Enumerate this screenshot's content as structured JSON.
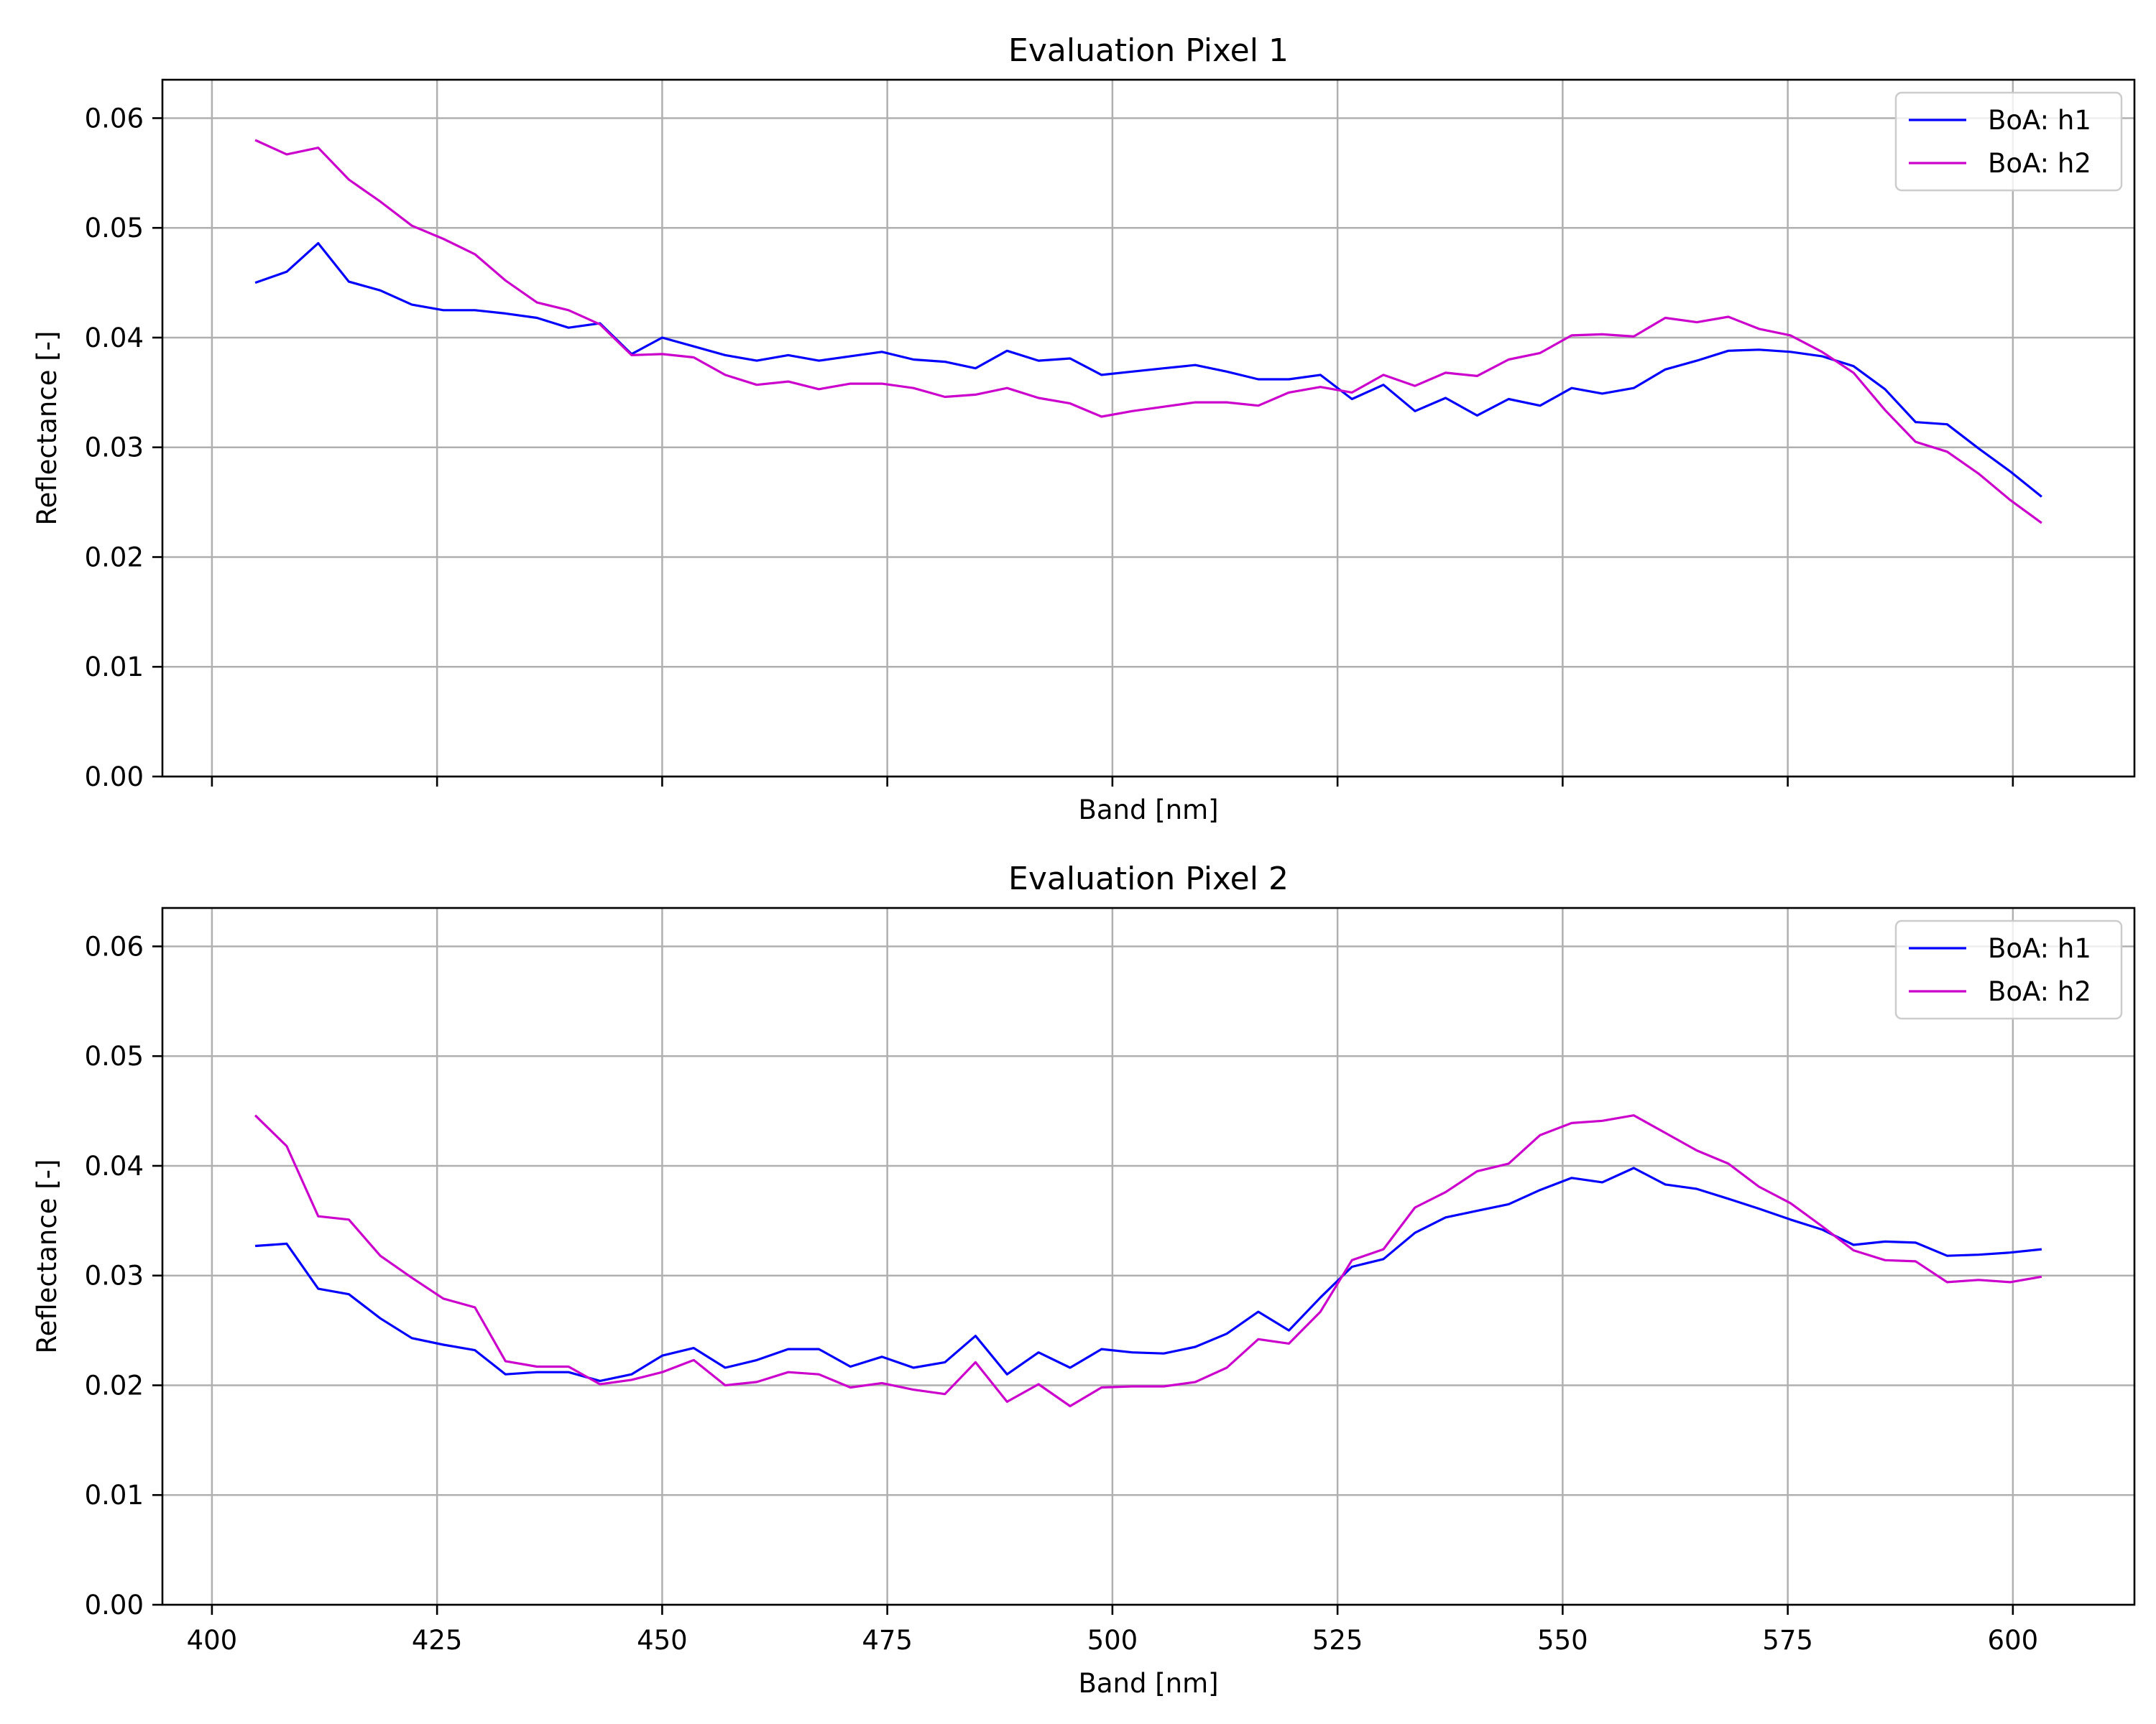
{
  "chart_data": [
    {
      "type": "line",
      "title": "Evaluation Pixel 1",
      "xlabel": "Band [nm]",
      "ylabel": "Reflectance [-]",
      "xlim": [
        394.5,
        613.5
      ],
      "ylim": [
        0,
        0.0635
      ],
      "xticks": [
        400,
        425,
        450,
        475,
        500,
        525,
        550,
        575,
        600
      ],
      "xtick_labels_visible": false,
      "yticks": [
        0.0,
        0.01,
        0.02,
        0.03,
        0.04,
        0.05,
        0.06
      ],
      "ytick_labels": [
        "0.00",
        "0.01",
        "0.02",
        "0.03",
        "0.04",
        "0.05",
        "0.06"
      ],
      "grid": true,
      "legend": "top-right",
      "x": [
        404.8,
        408.3,
        411.8,
        415.2,
        418.7,
        422.2,
        425.7,
        429.2,
        432.6,
        436.1,
        439.6,
        443.1,
        446.6,
        450.0,
        453.5,
        457.0,
        460.5,
        464.0,
        467.4,
        470.9,
        474.4,
        477.9,
        481.4,
        484.8,
        488.3,
        491.8,
        495.3,
        498.8,
        502.2,
        505.7,
        509.2,
        512.7,
        516.2,
        519.6,
        523.1,
        526.6,
        530.1,
        533.6,
        537.0,
        540.5,
        544.0,
        547.5,
        551.0,
        554.4,
        557.9,
        561.4,
        564.9,
        568.4,
        571.8,
        575.3,
        578.8,
        582.3,
        585.8,
        589.2,
        592.7,
        596.2,
        599.7,
        603.2
      ],
      "series": [
        {
          "name": "BoA: h1",
          "color": "#0000ff",
          "values": [
            0.045,
            0.046,
            0.0486,
            0.0451,
            0.0443,
            0.043,
            0.0425,
            0.0425,
            0.0422,
            0.0418,
            0.0409,
            0.0413,
            0.0385,
            0.04,
            0.0392,
            0.0384,
            0.0379,
            0.0384,
            0.0379,
            0.0383,
            0.0387,
            0.038,
            0.0378,
            0.0372,
            0.0388,
            0.0379,
            0.0381,
            0.0366,
            0.0369,
            0.0372,
            0.0375,
            0.0369,
            0.0362,
            0.0362,
            0.0366,
            0.0344,
            0.0357,
            0.0333,
            0.0345,
            0.0329,
            0.0344,
            0.0338,
            0.0354,
            0.0349,
            0.0354,
            0.0371,
            0.0379,
            0.0388,
            0.0389,
            0.0387,
            0.0383,
            0.0374,
            0.0353,
            0.0323,
            0.0321,
            0.0299,
            0.0278,
            0.0255
          ]
        },
        {
          "name": "BoA: h2",
          "color": "#cc00cc",
          "values": [
            0.058,
            0.0567,
            0.0573,
            0.0544,
            0.0524,
            0.0502,
            0.049,
            0.0476,
            0.0452,
            0.0432,
            0.0425,
            0.0412,
            0.0384,
            0.0385,
            0.0382,
            0.0366,
            0.0357,
            0.036,
            0.0353,
            0.0358,
            0.0358,
            0.0354,
            0.0346,
            0.0348,
            0.0354,
            0.0345,
            0.034,
            0.0328,
            0.0333,
            0.0337,
            0.0341,
            0.0341,
            0.0338,
            0.035,
            0.0355,
            0.035,
            0.0366,
            0.0356,
            0.0368,
            0.0365,
            0.038,
            0.0386,
            0.0402,
            0.0403,
            0.0401,
            0.0418,
            0.0414,
            0.0419,
            0.0408,
            0.0402,
            0.0387,
            0.0368,
            0.0334,
            0.0305,
            0.0296,
            0.0276,
            0.0252,
            0.0231
          ]
        }
      ]
    },
    {
      "type": "line",
      "title": "Evaluation Pixel 2",
      "xlabel": "Band [nm]",
      "ylabel": "Reflectance [-]",
      "xlim": [
        394.5,
        613.5
      ],
      "ylim": [
        0,
        0.0635
      ],
      "xticks": [
        400,
        425,
        450,
        475,
        500,
        525,
        550,
        575,
        600
      ],
      "xtick_labels_visible": true,
      "yticks": [
        0.0,
        0.01,
        0.02,
        0.03,
        0.04,
        0.05,
        0.06
      ],
      "ytick_labels": [
        "0.00",
        "0.01",
        "0.02",
        "0.03",
        "0.04",
        "0.05",
        "0.06"
      ],
      "grid": true,
      "legend": "top-right",
      "x": [
        404.8,
        408.3,
        411.8,
        415.2,
        418.7,
        422.2,
        425.7,
        429.2,
        432.6,
        436.1,
        439.6,
        443.1,
        446.6,
        450.0,
        453.5,
        457.0,
        460.5,
        464.0,
        467.4,
        470.9,
        474.4,
        477.9,
        481.4,
        484.8,
        488.3,
        491.8,
        495.3,
        498.8,
        502.2,
        505.7,
        509.2,
        512.7,
        516.2,
        519.6,
        523.1,
        526.6,
        530.1,
        533.6,
        537.0,
        540.5,
        544.0,
        547.5,
        551.0,
        554.4,
        557.9,
        561.4,
        564.9,
        568.4,
        571.8,
        575.3,
        578.8,
        582.3,
        585.8,
        589.2,
        592.7,
        596.2,
        599.7,
        603.2
      ],
      "series": [
        {
          "name": "BoA: h1",
          "color": "#0000ff",
          "values": [
            0.0327,
            0.0329,
            0.0288,
            0.0283,
            0.0261,
            0.0243,
            0.0237,
            0.0232,
            0.021,
            0.0212,
            0.0212,
            0.0204,
            0.021,
            0.0227,
            0.0234,
            0.0216,
            0.0223,
            0.0233,
            0.0233,
            0.0217,
            0.0226,
            0.0216,
            0.0221,
            0.0245,
            0.021,
            0.023,
            0.0216,
            0.0233,
            0.023,
            0.0229,
            0.0235,
            0.0247,
            0.0267,
            0.025,
            0.028,
            0.0308,
            0.0315,
            0.0339,
            0.0353,
            0.0359,
            0.0365,
            0.0378,
            0.0389,
            0.0385,
            0.0398,
            0.0383,
            0.0379,
            0.037,
            0.0361,
            0.0351,
            0.0342,
            0.0328,
            0.0331,
            0.033,
            0.0318,
            0.0319,
            0.0321,
            0.0324
          ]
        },
        {
          "name": "BoA: h2",
          "color": "#cc00cc",
          "values": [
            0.0446,
            0.0418,
            0.0354,
            0.0351,
            0.0318,
            0.0298,
            0.0279,
            0.0271,
            0.0222,
            0.0217,
            0.0217,
            0.0201,
            0.0205,
            0.0212,
            0.0223,
            0.02,
            0.0203,
            0.0212,
            0.021,
            0.0198,
            0.0202,
            0.0196,
            0.0192,
            0.0221,
            0.0185,
            0.0201,
            0.0181,
            0.0198,
            0.0199,
            0.0199,
            0.0203,
            0.0216,
            0.0242,
            0.0238,
            0.0267,
            0.0314,
            0.0324,
            0.0362,
            0.0376,
            0.0395,
            0.0402,
            0.0428,
            0.0439,
            0.0441,
            0.0446,
            0.043,
            0.0414,
            0.0402,
            0.0381,
            0.0366,
            0.0345,
            0.0323,
            0.0314,
            0.0313,
            0.0294,
            0.0296,
            0.0294,
            0.0299
          ]
        }
      ]
    }
  ]
}
